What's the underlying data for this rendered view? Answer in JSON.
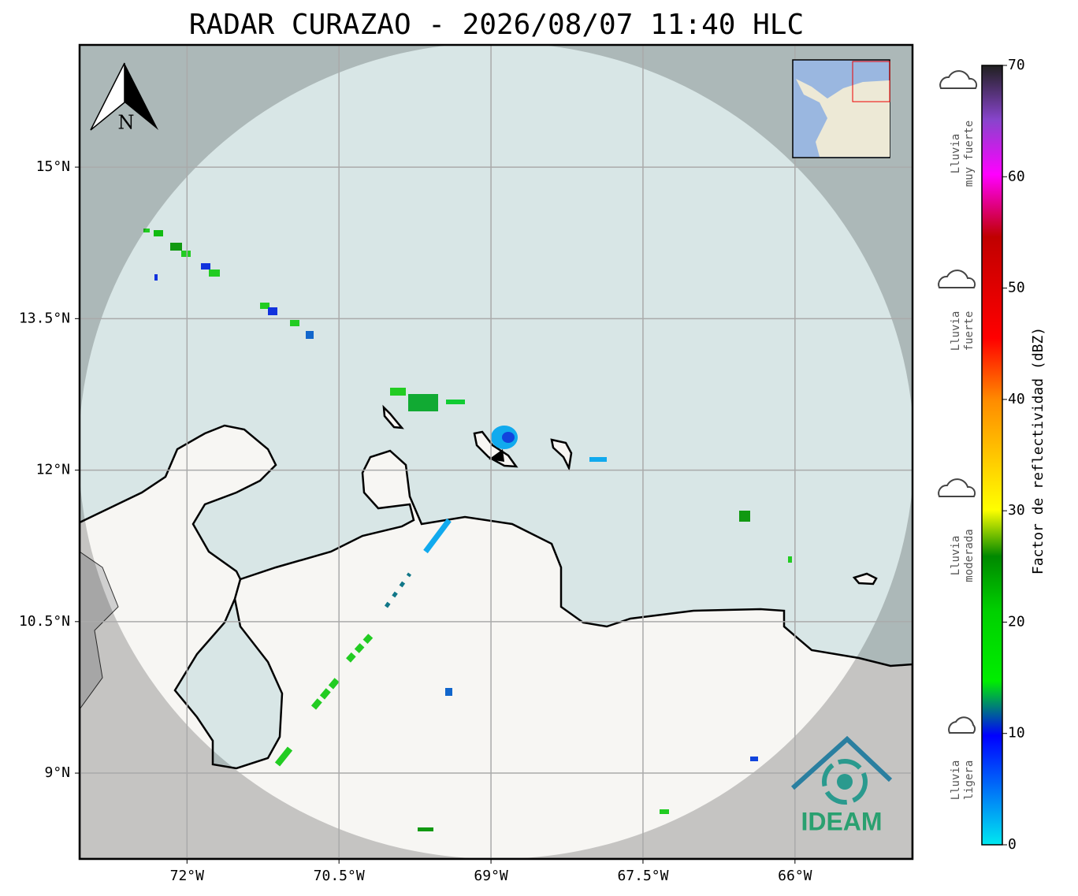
{
  "title": "RADAR CURAZAO - 2026/08/07 11:40 HLC",
  "map": {
    "xlim": [
      -73.06,
      -64.84
    ],
    "ylim": [
      8.15,
      16.21
    ],
    "xticks": [
      {
        "value": -72,
        "label": "72°W"
      },
      {
        "value": -70.5,
        "label": "70.5°W"
      },
      {
        "value": -69,
        "label": "69°W"
      },
      {
        "value": -67.5,
        "label": "67.5°W"
      },
      {
        "value": -66,
        "label": "66°W"
      }
    ],
    "yticks": [
      {
        "value": 15,
        "label": "15°N"
      },
      {
        "value": 13.5,
        "label": "13.5°N"
      },
      {
        "value": 12,
        "label": "12°N"
      },
      {
        "value": 10.5,
        "label": "10.5°N"
      },
      {
        "value": 9,
        "label": "9°N"
      }
    ],
    "north_label": "N",
    "logo": "IDEAM"
  },
  "colorbar": {
    "label": "Factor de reflectividad (dBZ)",
    "lim": [
      0,
      70
    ],
    "ticks": [
      0,
      10,
      20,
      30,
      40,
      50,
      60,
      70
    ]
  },
  "rain_categories": [
    [
      "Lluvia",
      "ligera"
    ],
    [
      "Lluvia",
      "moderada"
    ],
    [
      "Lluvia",
      "fuerte"
    ],
    [
      "Lluvia",
      "muy fuerte"
    ]
  ]
}
